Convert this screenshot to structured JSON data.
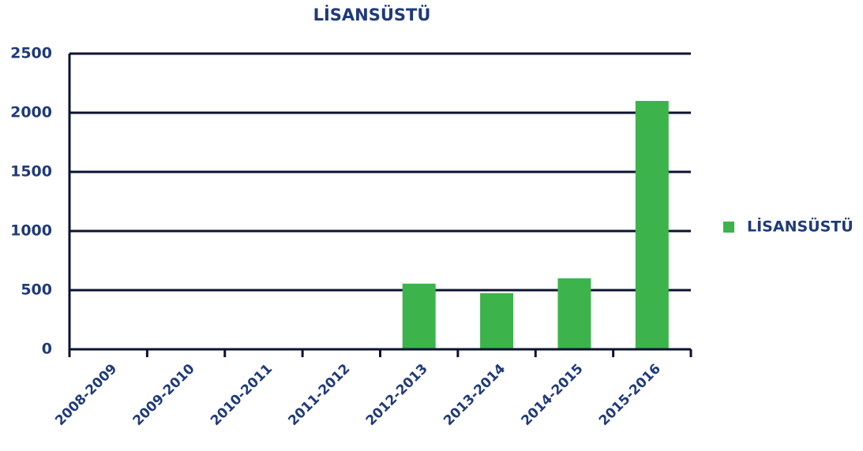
{
  "chart_data": {
    "type": "bar",
    "title": "LİSANSÜSTÜ",
    "categories": [
      "2008-2009",
      "2009-2010",
      "2010-2011",
      "2011-2012",
      "2012-2013",
      "2013-2014",
      "2014-2015",
      "2015-2016"
    ],
    "series": [
      {
        "name": "LİSANSÜSTÜ",
        "color": "#3cb44b",
        "values": [
          0,
          0,
          0,
          0,
          555,
          475,
          600,
          2100
        ]
      }
    ],
    "ylim": [
      0,
      2500
    ],
    "yticks": [
      0,
      500,
      1000,
      1500,
      2000,
      2500
    ],
    "grid": true,
    "legend": "right"
  }
}
